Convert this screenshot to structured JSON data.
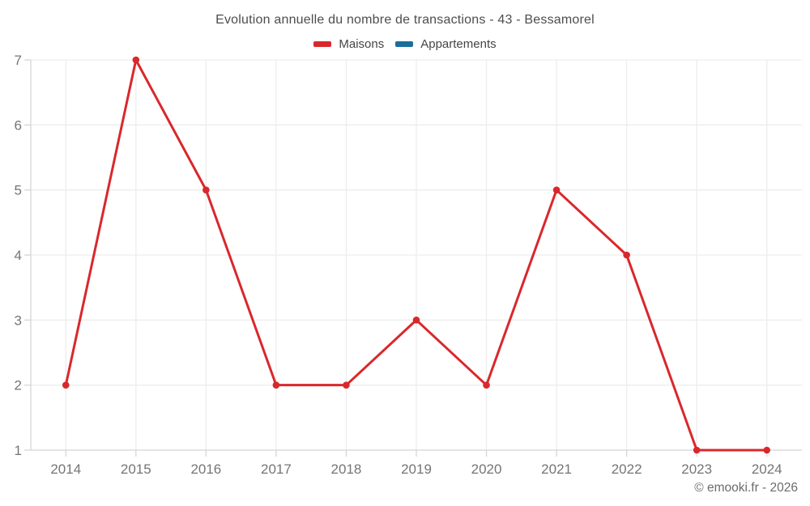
{
  "chart_data": {
    "type": "line",
    "title": "Evolution annuelle du nombre de transactions - 43 - Bessamorel",
    "categories": [
      "2014",
      "2015",
      "2016",
      "2017",
      "2018",
      "2019",
      "2020",
      "2021",
      "2022",
      "2023",
      "2024"
    ],
    "series": [
      {
        "name": "Maisons",
        "color": "#d9282c",
        "values": [
          2,
          7,
          5,
          2,
          2,
          3,
          2,
          5,
          4,
          1,
          1
        ]
      },
      {
        "name": "Appartements",
        "color": "#1a6e9c",
        "values": []
      }
    ],
    "xlabel": "",
    "ylabel": "",
    "ylim": [
      1,
      7
    ],
    "yticks": [
      1,
      2,
      3,
      4,
      5,
      6,
      7
    ],
    "grid": true,
    "legend_position": "top",
    "colors": {
      "grid_line": "#ededee",
      "axis_line": "#d6d6d8",
      "tick_label": "#757575"
    }
  },
  "footer": {
    "copyright": "© emooki.fr - 2026"
  }
}
